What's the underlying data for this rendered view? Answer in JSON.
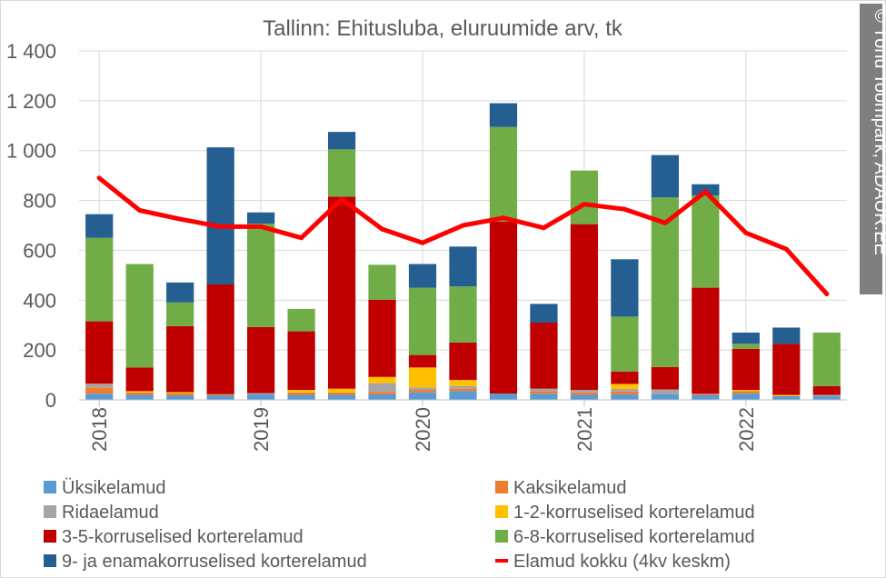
{
  "chart_data": {
    "type": "bar",
    "stacked": true,
    "title": "Tallinn: Ehitusluba, eluruumide arv, tk",
    "ylim": [
      0,
      1400
    ],
    "ytick_labels": [
      "0",
      "200",
      "400",
      "600",
      "800",
      "1 000",
      "1 200",
      "1 400"
    ],
    "xtick_labels": [
      "2018",
      "2019",
      "2020",
      "2021",
      "2022"
    ],
    "categories": [
      "2018 Q1",
      "2018 Q2",
      "2018 Q3",
      "2018 Q4",
      "2019 Q1",
      "2019 Q2",
      "2019 Q3",
      "2019 Q4",
      "2020 Q1",
      "2020 Q2",
      "2020 Q3",
      "2020 Q4",
      "2021 Q1",
      "2021 Q2",
      "2021 Q3",
      "2021 Q4",
      "2022 Q1",
      "2022 Q2",
      "2022 Q3"
    ],
    "grid": true,
    "legend_position": "bottom",
    "series": [
      {
        "name": "Üksikelamud",
        "color": "#5b9bd5",
        "values": [
          25,
          20,
          18,
          18,
          22,
          20,
          20,
          22,
          30,
          35,
          25,
          25,
          20,
          22,
          22,
          20,
          25,
          15,
          15
        ]
      },
      {
        "name": "Kaksikelamud",
        "color": "#ed7d31",
        "values": [
          25,
          10,
          8,
          5,
          0,
          10,
          10,
          10,
          10,
          10,
          0,
          10,
          10,
          12,
          0,
          5,
          10,
          0,
          0
        ]
      },
      {
        "name": "Ridaelamud",
        "color": "#a5a5a5",
        "values": [
          15,
          0,
          0,
          0,
          5,
          0,
          0,
          35,
          10,
          10,
          0,
          10,
          10,
          10,
          20,
          0,
          0,
          0,
          5
        ]
      },
      {
        "name": "1-2-korruselised korterelamud",
        "color": "#ffc000",
        "values": [
          0,
          5,
          5,
          0,
          0,
          10,
          15,
          25,
          80,
          25,
          0,
          0,
          0,
          20,
          0,
          0,
          5,
          5,
          0
        ]
      },
      {
        "name": "3-5-korruselised korterelamud",
        "color": "#c00000",
        "values": [
          250,
          95,
          265,
          440,
          265,
          235,
          770,
          310,
          50,
          150,
          690,
          265,
          665,
          50,
          90,
          425,
          165,
          205,
          35
        ]
      },
      {
        "name": "6-8-korruselised korterelamud",
        "color": "#70ad47",
        "values": [
          335,
          415,
          95,
          0,
          415,
          90,
          190,
          140,
          270,
          225,
          380,
          0,
          215,
          220,
          680,
          370,
          20,
          0,
          215
        ]
      },
      {
        "name": "9- ja enamakorruselised korterelamud",
        "color": "#255e91",
        "values": [
          95,
          0,
          80,
          550,
          45,
          0,
          70,
          0,
          95,
          160,
          95,
          75,
          0,
          230,
          170,
          45,
          45,
          65,
          0
        ]
      },
      {
        "name": "Elamud kokku (4kv keskm)",
        "color": "#ff0000",
        "type": "line",
        "values": [
          890,
          760,
          725,
          695,
          695,
          650,
          805,
          685,
          630,
          700,
          730,
          690,
          785,
          765,
          710,
          835,
          670,
          605,
          425
        ]
      }
    ],
    "watermark": "© Tõnu Toompark, ADAUR.EE"
  }
}
